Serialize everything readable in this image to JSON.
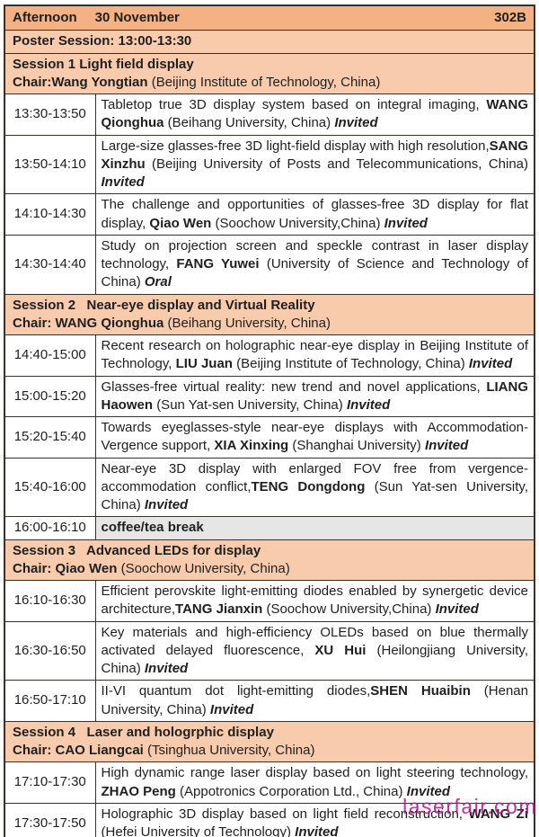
{
  "colors": {
    "header_bg": "#f4b183",
    "section_bg": "#f8cbad",
    "break_bg": "#e7e6e6",
    "border": "#3a3028",
    "watermark_color": "#b81690"
  },
  "header": {
    "period": "Afternoon",
    "date": "30 November",
    "room": "302B"
  },
  "poster_session": "Poster Session: 13:00-13:30",
  "watermark": "laserfair.com",
  "rows": [
    {
      "type": "session",
      "title": "Session 1 Light field display",
      "chair": [
        {
          "t": "Chair:Wang Yongtian ",
          "s": "b"
        },
        {
          "t": "(Beijing Institute of Technology, China)",
          "s": "n"
        }
      ]
    },
    {
      "type": "talk",
      "time": "13:30-13:50",
      "parts": [
        {
          "t": "Tabletop true 3D display system based on integral imaging, ",
          "s": "n"
        },
        {
          "t": "WANG Qionghua ",
          "s": "b"
        },
        {
          "t": "(Beihang University, China) ",
          "s": "n"
        },
        {
          "t": "Invited",
          "s": "bi"
        }
      ]
    },
    {
      "type": "talk",
      "time": "13:50-14:10",
      "parts": [
        {
          "t": "Large-size glasses-free 3D light-field display with high resolution,",
          "s": "n"
        },
        {
          "t": "SANG Xinzhu ",
          "s": "b"
        },
        {
          "t": "(Beijing University of Posts and Telecommunications, China) ",
          "s": "n"
        },
        {
          "t": "Invited",
          "s": "bi"
        }
      ]
    },
    {
      "type": "talk",
      "time": "14:10-14:30",
      "parts": [
        {
          "t": "The challenge and opportunities of glasses-free 3D display for flat display, ",
          "s": "n"
        },
        {
          "t": "Qiao Wen ",
          "s": "b"
        },
        {
          "t": "(Soochow University,China) ",
          "s": "n"
        },
        {
          "t": "Invited",
          "s": "bi"
        }
      ]
    },
    {
      "type": "talk",
      "time": "14:30-14:40",
      "parts": [
        {
          "t": "Study on projection screen and speckle contrast in laser display technology, ",
          "s": "n"
        },
        {
          "t": "FANG Yuwei ",
          "s": "b"
        },
        {
          "t": "(University of Science and Technology of China) ",
          "s": "n"
        },
        {
          "t": "Oral",
          "s": "bi"
        }
      ]
    },
    {
      "type": "session",
      "title": "Session 2   Near-eye display and Virtual Reality",
      "chair": [
        {
          "t": "Chair: WANG Qionghua ",
          "s": "b"
        },
        {
          "t": "(Beihang University, China)",
          "s": "n"
        }
      ]
    },
    {
      "type": "talk",
      "time": "14:40-15:00",
      "parts": [
        {
          "t": "Recent research on holographic near-eye display in Beijing Institute of Technology, ",
          "s": "n"
        },
        {
          "t": "LIU Juan ",
          "s": "b"
        },
        {
          "t": "(Beijing Institute of Technology, China) ",
          "s": "n"
        },
        {
          "t": "Invited",
          "s": "bi"
        }
      ]
    },
    {
      "type": "talk",
      "time": "15:00-15:20",
      "parts": [
        {
          "t": "Glasses-free virtual reality: new trend and novel applications, ",
          "s": "n"
        },
        {
          "t": "LIANG Haowen ",
          "s": "b"
        },
        {
          "t": "(Sun Yat-sen University, China) ",
          "s": "n"
        },
        {
          "t": "Invited",
          "s": "bi"
        }
      ]
    },
    {
      "type": "talk",
      "time": "15:20-15:40",
      "parts": [
        {
          "t": "Towards eyeglasses-style near-eye displays with Accommodation-Vergence support, ",
          "s": "n"
        },
        {
          "t": "XIA Xinxing ",
          "s": "b"
        },
        {
          "t": "(Shanghai University) ",
          "s": "n"
        },
        {
          "t": "Invited",
          "s": "bi"
        }
      ]
    },
    {
      "type": "talk",
      "time": "15:40-16:00",
      "parts": [
        {
          "t": "Near-eye 3D display with enlarged FOV free from vergence-accommodation conflict,",
          "s": "n"
        },
        {
          "t": "TENG Dongdong ",
          "s": "b"
        },
        {
          "t": "(Sun Yat-sen University, China) ",
          "s": "n"
        },
        {
          "t": "Invited",
          "s": "bi"
        }
      ]
    },
    {
      "type": "break",
      "time": "16:00-16:10",
      "label": "coffee/tea break"
    },
    {
      "type": "session",
      "title": "Session 3   Advanced LEDs for display",
      "chair": [
        {
          "t": "Chair: Qiao Wen ",
          "s": "b"
        },
        {
          "t": "(Soochow University, China)",
          "s": "n"
        }
      ]
    },
    {
      "type": "talk",
      "time": "16:10-16:30",
      "parts": [
        {
          "t": "Efficient perovskite light-emitting diodes enabled by synergetic device architecture,",
          "s": "n"
        },
        {
          "t": "TANG Jianxin ",
          "s": "b"
        },
        {
          "t": "(Soochow University,China) ",
          "s": "n"
        },
        {
          "t": "Invited",
          "s": "bi"
        }
      ]
    },
    {
      "type": "talk",
      "time": "16:30-16:50",
      "parts": [
        {
          "t": "Key materials and high-efficiency OLEDs based on blue thermally activated delayed fluorescence, ",
          "s": "n"
        },
        {
          "t": "XU Hui ",
          "s": "b"
        },
        {
          "t": "(Heilongjiang University, China) ",
          "s": "n"
        },
        {
          "t": "Invited",
          "s": "bi"
        }
      ]
    },
    {
      "type": "talk",
      "time": "16:50-17:10",
      "parts": [
        {
          "t": "II-VI quantum dot light-emitting diodes,",
          "s": "n"
        },
        {
          "t": "SHEN Huaibin ",
          "s": "b"
        },
        {
          "t": "(Henan University, China) ",
          "s": "n"
        },
        {
          "t": "Invited",
          "s": "bi"
        }
      ]
    },
    {
      "type": "session",
      "title": "Session 4   Laser and hologrphic display",
      "chair": [
        {
          "t": "Chair: CAO Liangcai ",
          "s": "b"
        },
        {
          "t": "(Tsinghua University, China)",
          "s": "n"
        }
      ]
    },
    {
      "type": "talk",
      "time": "17:10-17:30",
      "parts": [
        {
          "t": "High dynamic range laser display based on light steering technology, ",
          "s": "n"
        },
        {
          "t": "ZHAO Peng ",
          "s": "b"
        },
        {
          "t": "(Appotronics Corporation Ltd., China) ",
          "s": "n"
        },
        {
          "t": "Invited",
          "s": "bi"
        }
      ]
    },
    {
      "type": "talk",
      "time": "17:30-17:50",
      "parts": [
        {
          "t": "Holographic 3D display based on light field reconstruction, ",
          "s": "n"
        },
        {
          "t": "WANG Zi ",
          "s": "b"
        },
        {
          "t": "(Hefei University of Technology) ",
          "s": "n"
        },
        {
          "t": "Invited",
          "s": "bi"
        }
      ]
    }
  ]
}
